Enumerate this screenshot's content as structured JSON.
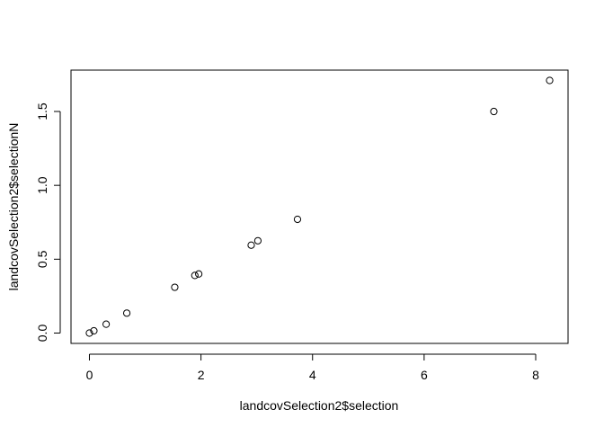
{
  "chart_data": {
    "type": "scatter",
    "title": "",
    "xlabel": "landcovSelection2$selection",
    "ylabel": "landcovSelection2$selectionN",
    "xlim": [
      -0.33,
      8.58
    ],
    "ylim": [
      -0.07,
      1.78
    ],
    "x_ticks": [
      0,
      2,
      4,
      6,
      8
    ],
    "x_tick_labels": [
      "0",
      "2",
      "4",
      "6",
      "8"
    ],
    "y_ticks": [
      0.0,
      0.5,
      1.0,
      1.5
    ],
    "y_tick_labels": [
      "0.0",
      "0.5",
      "1.0",
      "1.5"
    ],
    "grid": false,
    "legend": false,
    "marker": "open-circle",
    "marker_color": "#000000",
    "series": [
      {
        "points": [
          {
            "x": 0.0,
            "y": 0.0
          },
          {
            "x": 0.08,
            "y": 0.015
          },
          {
            "x": 0.3,
            "y": 0.06
          },
          {
            "x": 0.67,
            "y": 0.135
          },
          {
            "x": 1.53,
            "y": 0.31
          },
          {
            "x": 1.89,
            "y": 0.39
          },
          {
            "x": 1.96,
            "y": 0.4
          },
          {
            "x": 2.9,
            "y": 0.595
          },
          {
            "x": 3.02,
            "y": 0.625
          },
          {
            "x": 3.73,
            "y": 0.77
          },
          {
            "x": 7.25,
            "y": 1.5
          },
          {
            "x": 8.25,
            "y": 1.71
          }
        ]
      }
    ]
  }
}
